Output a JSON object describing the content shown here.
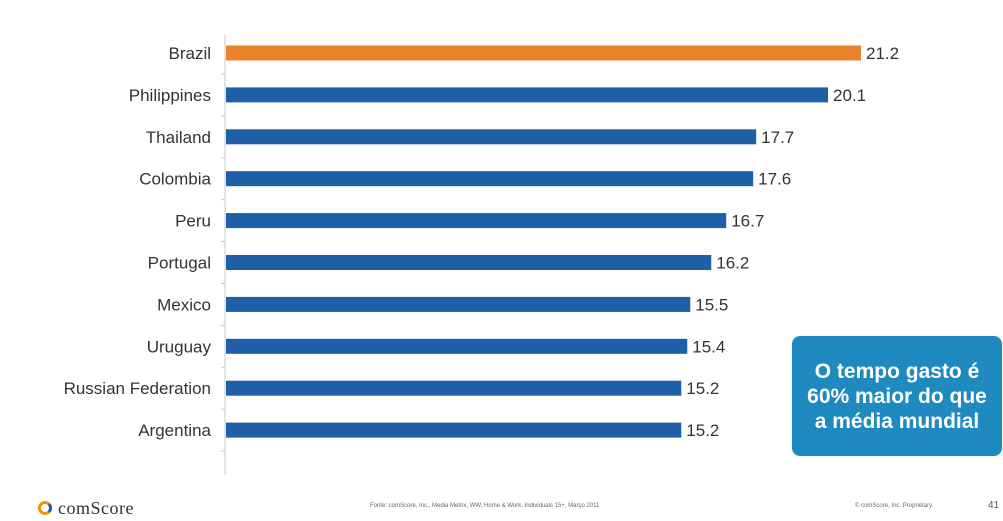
{
  "chart_data": {
    "type": "bar",
    "orientation": "horizontal",
    "categories": [
      "Brazil",
      "Philippines",
      "Thailand",
      "Colombia",
      "Peru",
      "Portugal",
      "Mexico",
      "Uruguay",
      "Russian Federation",
      "Argentina"
    ],
    "values": [
      21.2,
      20.1,
      17.7,
      17.6,
      16.7,
      16.2,
      15.5,
      15.4,
      15.2,
      15.2
    ],
    "highlight_index": 0,
    "colors": {
      "default": "#1f5fa8",
      "highlight": "#e8822b"
    },
    "xlim": [
      0,
      21.2
    ],
    "grid": false,
    "title": "",
    "xlabel": "",
    "ylabel": ""
  },
  "callout": {
    "text": "O tempo gasto é\n60% maior do que\na média mundial",
    "color": "#1f8ac0"
  },
  "footer": {
    "logo": "comScore",
    "source": "Fonte: comScore, Inc., Media Metrix, WW, Home & Work, Individuals 15+, Março 2011",
    "copyright": "© comScore, Inc. Proprietary.",
    "page_number": "41"
  }
}
